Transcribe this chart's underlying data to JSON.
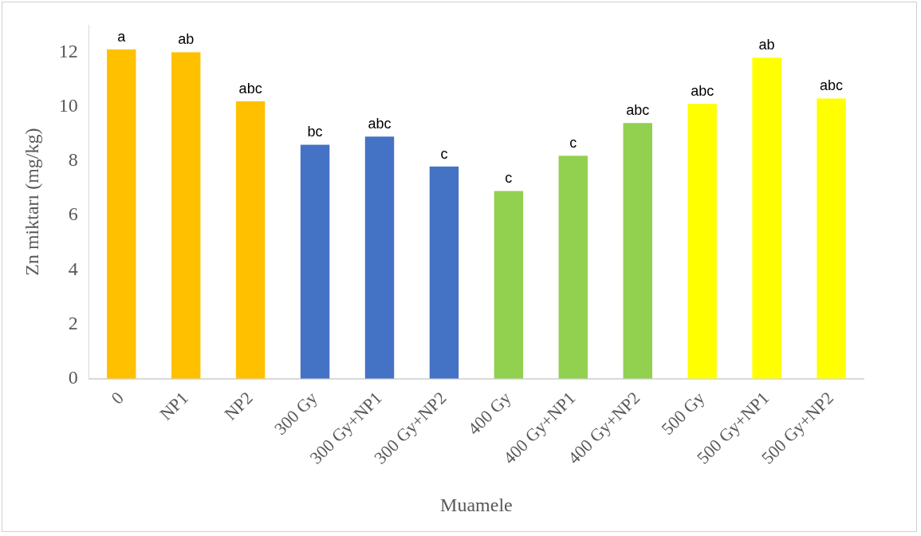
{
  "chart_data": {
    "type": "bar",
    "xlabel": "Muamele",
    "ylabel": "Zn miktarı (mg/kg)",
    "categories": [
      "0",
      "NP1",
      "NP2",
      "300 Gy",
      "300 Gy+NP1",
      "300 Gy+NP2",
      "400 Gy",
      "400 Gy+NP1",
      "400 Gy+NP2",
      "500 Gy",
      "500 Gy+NP1",
      "500 Gy+NP2"
    ],
    "values": [
      12.1,
      12.0,
      10.2,
      8.6,
      8.9,
      7.8,
      6.9,
      8.2,
      9.4,
      10.1,
      11.8,
      10.3
    ],
    "colors": [
      "#ffc000",
      "#ffc000",
      "#ffc000",
      "#4472c4",
      "#4472c4",
      "#4472c4",
      "#92d050",
      "#92d050",
      "#92d050",
      "#ffff00",
      "#ffff00",
      "#ffff00"
    ],
    "value_labels": [
      "a",
      "ab",
      "abc",
      "bc",
      "abc",
      "c",
      "c",
      "c",
      "abc",
      "abc",
      "ab",
      "abc"
    ],
    "ylim": [
      0,
      13
    ],
    "yticks": [
      0,
      2,
      4,
      6,
      8,
      10,
      12
    ],
    "grid": false,
    "legend": false
  }
}
